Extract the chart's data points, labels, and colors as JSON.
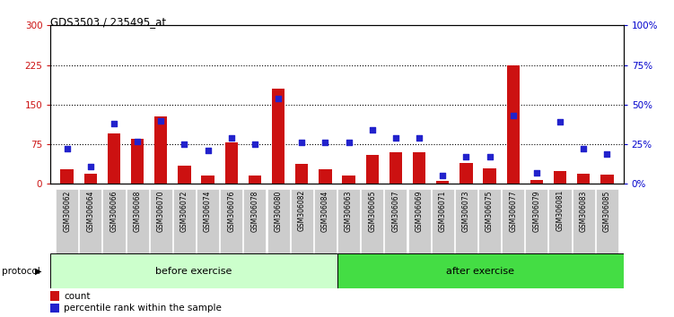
{
  "title": "GDS3503 / 235495_at",
  "samples": [
    "GSM306062",
    "GSM306064",
    "GSM306066",
    "GSM306068",
    "GSM306070",
    "GSM306072",
    "GSM306074",
    "GSM306076",
    "GSM306078",
    "GSM306080",
    "GSM306082",
    "GSM306084",
    "GSM306063",
    "GSM306065",
    "GSM306067",
    "GSM306069",
    "GSM306071",
    "GSM306073",
    "GSM306075",
    "GSM306077",
    "GSM306079",
    "GSM306081",
    "GSM306083",
    "GSM306085"
  ],
  "counts": [
    28,
    20,
    95,
    85,
    128,
    35,
    15,
    78,
    15,
    180,
    38,
    28,
    15,
    55,
    60,
    60,
    5,
    40,
    30,
    225,
    8,
    25,
    20,
    18
  ],
  "percentiles": [
    22,
    11,
    38,
    27,
    40,
    25,
    21,
    29,
    25,
    54,
    26,
    26,
    26,
    34,
    29,
    29,
    5,
    17,
    17,
    43,
    7,
    39,
    22,
    19
  ],
  "before_exercise_count": 12,
  "after_exercise_count": 12,
  "before_label": "before exercise",
  "after_label": "after exercise",
  "protocol_label": "protocol",
  "legend_count": "count",
  "legend_percentile": "percentile rank within the sample",
  "left_yticks": [
    0,
    75,
    150,
    225,
    300
  ],
  "right_yticks": [
    0,
    25,
    50,
    75,
    100
  ],
  "left_ylim": [
    0,
    300
  ],
  "right_ylim": [
    0,
    100
  ],
  "bar_color": "#cc1111",
  "dot_color": "#2222cc",
  "before_bg": "#ccffcc",
  "after_bg": "#44dd44",
  "axis_left_color": "#cc1111",
  "axis_right_color": "#0000cc",
  "dotted_grid_levels": [
    75,
    150,
    225
  ]
}
